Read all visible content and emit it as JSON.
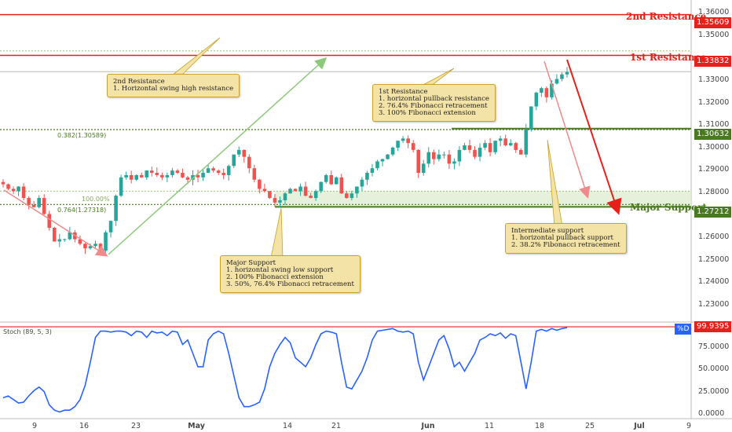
{
  "chart_data": {
    "type": "line",
    "title": "",
    "price_axis": {
      "ylim": [
        1.2225,
        1.3625
      ],
      "ticks": [
        "1.36000",
        "1.35000",
        "1.33000",
        "1.32000",
        "1.31000",
        "1.30000",
        "1.29000",
        "1.28000",
        "1.26000",
        "1.25000",
        "1.24000",
        "1.23000"
      ]
    },
    "x_ticks": [
      "9",
      "16",
      "23",
      "May",
      "14",
      "21",
      "Jun",
      "11",
      "18",
      "25",
      "Jul",
      "9"
    ],
    "series": [
      {
        "values": [
          1.282,
          1.28,
          1.279,
          1.281,
          1.276,
          1.273,
          1.272,
          1.276,
          1.269,
          1.263,
          1.257,
          1.258,
          1.258,
          1.261,
          1.258,
          1.256,
          1.254,
          1.255,
          1.256,
          1.253,
          1.261,
          1.266,
          1.277,
          1.285,
          1.286,
          1.284,
          1.286,
          1.285,
          1.288,
          1.287,
          1.286,
          1.285,
          1.286,
          1.288,
          1.287,
          1.285,
          1.284,
          1.286,
          1.285,
          1.287,
          1.289,
          1.288,
          1.287,
          1.286,
          1.29,
          1.295,
          1.297,
          1.294,
          1.289,
          1.284,
          1.28,
          1.279,
          1.276,
          1.274,
          1.275,
          1.278,
          1.28,
          1.279,
          1.281,
          1.277,
          1.276,
          1.279,
          1.283,
          1.286,
          1.282,
          1.285,
          1.278,
          1.276,
          1.278,
          1.281,
          1.284,
          1.287,
          1.289,
          1.292,
          1.293,
          1.295,
          1.298,
          1.301,
          1.302,
          1.3,
          1.297,
          1.287,
          1.291,
          1.296,
          1.293,
          1.295,
          1.295,
          1.291,
          1.292,
          1.297,
          1.299,
          1.297,
          1.294,
          1.298,
          1.3,
          1.296,
          1.301,
          1.302,
          1.299,
          1.3,
          1.297,
          1.295,
          1.306,
          1.316,
          1.322,
          1.324,
          1.32,
          1.326,
          1.328,
          1.33,
          1.331
        ]
      }
    ],
    "levels": [
      {
        "name": "2nd Resistance",
        "value": 1.35609,
        "color": "#e8201a"
      },
      {
        "name": "1st Resistance",
        "value": 1.33832,
        "color": "#e8201a"
      },
      {
        "name": "Major Support",
        "value": 1.27212,
        "color": "#4a7a1f"
      }
    ],
    "fib_labels": [
      "0.382(1.30589)",
      "100.00%",
      "0.764(1.27318)"
    ],
    "intermediate_support": "1.30632",
    "stoch": {
      "label": "Stoch (89, 5, 3)",
      "ylim": [
        0,
        100
      ],
      "ticks": [
        "75.0000",
        "50.0000",
        "25.0000",
        "0.0000"
      ],
      "current": "99.9395",
      "tag": "%D",
      "values": [
        20,
        22,
        18,
        14,
        15,
        22,
        28,
        32,
        27,
        12,
        6,
        4,
        6,
        6,
        10,
        18,
        34,
        60,
        88,
        95,
        95,
        94,
        95,
        95,
        94,
        90,
        95,
        94,
        88,
        95,
        93,
        94,
        90,
        95,
        94,
        80,
        85,
        70,
        55,
        55,
        85,
        92,
        95,
        92,
        70,
        45,
        20,
        10,
        10,
        12,
        15,
        30,
        55,
        70,
        80,
        88,
        82,
        65,
        60,
        55,
        65,
        80,
        92,
        95,
        94,
        92,
        60,
        32,
        30,
        40,
        50,
        65,
        85,
        95,
        96,
        97,
        98,
        95,
        94,
        95,
        92,
        60,
        40,
        55,
        70,
        85,
        90,
        75,
        55,
        60,
        50,
        60,
        70,
        85,
        88,
        92,
        90,
        93,
        87,
        92,
        90,
        60,
        30,
        60,
        95,
        97,
        95,
        98,
        96,
        98,
        99
      ]
    },
    "notes": {
      "second_resistance": [
        "2nd Resistance",
        "1. Horizontal swing high resistance"
      ],
      "first_resistance": [
        "1st Resistance",
        "1. horizontal pullback resistance",
        "2. 76.4% Fibonacci retracement",
        "3. 100% Fibonacci extension"
      ],
      "major_support": [
        "Major Support",
        "1. horizontal swing low support",
        "2. 100% Fibonacci extension",
        "3. 50%, 76.4% Fibonacci retracement"
      ],
      "intermediate_support": [
        "Intermediate support",
        "1. horizontal pullback support",
        "2. 38.2% Fibonacci retracement"
      ]
    },
    "colors": {
      "up": "#26a69a",
      "down": "#ef5350",
      "resistance": "#e8201a",
      "support": "#4a7a1f",
      "arrow_green": "#8cc97a",
      "stoch_line": "#2962ff",
      "tag_blue": "#2962ff"
    }
  }
}
